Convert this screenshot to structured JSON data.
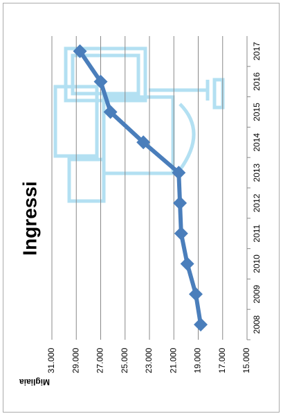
{
  "chart_data": {
    "type": "line",
    "title": "Ingressi",
    "y_label": "Migliaia",
    "categories": [
      "2008",
      "2009",
      "2010",
      "2011",
      "2012",
      "2013",
      "2014",
      "2015",
      "2016",
      "2017"
    ],
    "series": [
      {
        "name": "Ingressi",
        "color": "#4a7ebb",
        "values": [
          18800,
          19200,
          19900,
          20400,
          20500,
          20600,
          23500,
          26200,
          27000,
          28700
        ]
      }
    ],
    "ylim": [
      15000,
      31000
    ],
    "yticks": [
      {
        "value": 15000,
        "label": "15.000"
      },
      {
        "value": 17000,
        "label": "17.000"
      },
      {
        "value": 19000,
        "label": "19.000"
      },
      {
        "value": 21000,
        "label": "21.000"
      },
      {
        "value": 23000,
        "label": "23.000"
      },
      {
        "value": 25000,
        "label": "25.000"
      },
      {
        "value": 27000,
        "label": "27.000"
      },
      {
        "value": 29000,
        "label": "29.000"
      },
      {
        "value": 31000,
        "label": "31.000"
      }
    ],
    "grid": true
  }
}
